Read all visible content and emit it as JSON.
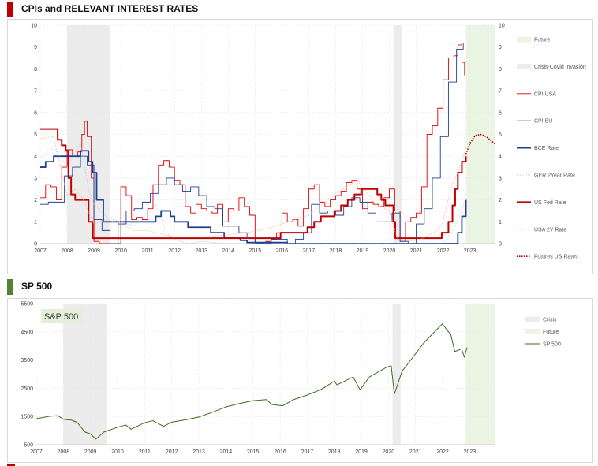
{
  "sections": {
    "rates": {
      "title": "CPIs and RELEVANT INTEREST RATES",
      "marker_color": "#c00000"
    },
    "sp500": {
      "title": "SP 500",
      "marker_color": "#548235"
    }
  },
  "colors": {
    "cpi_usa": "#e00000",
    "cpi_eu": "#1f3f8f",
    "bce_rate": "#1f3f8f",
    "ger_2y": "#b8c8e8",
    "fed_rate": "#c00000",
    "usa_2y": "#f4b18c",
    "futures": "#c00000",
    "crisis_band": "#ececec",
    "future_band": "#eaf5e4",
    "sp500_line": "#3a6e1c",
    "sp500_label_bg": "#e3efd9"
  },
  "chart_data": [
    {
      "type": "line",
      "title": "CPIs and RELEVANT INTEREST RATES",
      "xlabel": "",
      "ylabel": "",
      "x_ticks": [
        "2007",
        "2008",
        "2009",
        "2010",
        "2011",
        "2012",
        "2013",
        "2014",
        "2015",
        "2016",
        "2017",
        "2018",
        "2019",
        "2020",
        "2021",
        "2022",
        "2023"
      ],
      "xlim": [
        2007,
        2023.95
      ],
      "ylim": [
        0,
        10
      ],
      "y_ticks": [
        0,
        1,
        2,
        3,
        4,
        5,
        6,
        7,
        8,
        9,
        10
      ],
      "grid": true,
      "legend_position": "right",
      "shaded_ranges": [
        {
          "name": "Crisis-Covid Invasión",
          "ranges": [
            [
              2008.0,
              2009.6
            ],
            [
              2020.15,
              2020.45
            ]
          ]
        },
        {
          "name": "Future",
          "ranges": [
            [
              2022.85,
              2023.95
            ]
          ]
        }
      ],
      "legend": [
        "Future",
        "Crisis-Covid Invasión",
        "CPI USA",
        "CPI EU",
        "BCE Rate",
        "GER 2Year Rate",
        "US Fed Rate",
        "USA 2Y Rate",
        "Futures US Rates"
      ],
      "series": [
        {
          "name": "CPI USA",
          "style": "step",
          "x": [
            2007.0,
            2007.2,
            2007.4,
            2007.6,
            2007.8,
            2008.0,
            2008.2,
            2008.4,
            2008.55,
            2008.65,
            2008.75,
            2008.9,
            2009.0,
            2009.2,
            2009.4,
            2009.6,
            2009.8,
            2010.0,
            2010.2,
            2010.4,
            2010.6,
            2010.8,
            2011.0,
            2011.2,
            2011.4,
            2011.6,
            2011.8,
            2012.0,
            2012.2,
            2012.4,
            2012.6,
            2012.8,
            2013.0,
            2013.2,
            2013.4,
            2013.6,
            2013.8,
            2014.0,
            2014.2,
            2014.4,
            2014.6,
            2014.8,
            2015.0,
            2015.2,
            2015.4,
            2015.6,
            2015.8,
            2016.0,
            2016.2,
            2016.4,
            2016.6,
            2016.8,
            2017.0,
            2017.2,
            2017.4,
            2017.6,
            2017.8,
            2018.0,
            2018.2,
            2018.4,
            2018.6,
            2018.8,
            2019.0,
            2019.2,
            2019.4,
            2019.6,
            2019.8,
            2020.0,
            2020.2,
            2020.4,
            2020.6,
            2020.8,
            2021.0,
            2021.2,
            2021.4,
            2021.6,
            2021.8,
            2022.0,
            2022.2,
            2022.4,
            2022.55,
            2022.7,
            2022.8
          ],
          "values": [
            2.1,
            2.7,
            2.6,
            2.0,
            3.5,
            4.3,
            4.0,
            4.2,
            5.0,
            5.6,
            4.9,
            3.0,
            0.1,
            -0.4,
            -1.3,
            -1.5,
            0.0,
            2.6,
            2.2,
            1.1,
            1.2,
            1.1,
            1.6,
            2.7,
            3.6,
            3.8,
            3.5,
            2.9,
            2.7,
            1.7,
            1.4,
            1.8,
            1.6,
            1.5,
            1.4,
            1.8,
            1.0,
            1.6,
            1.5,
            2.1,
            1.7,
            1.3,
            0.0,
            -0.1,
            0.1,
            0.2,
            0.5,
            1.4,
            1.0,
            1.1,
            0.8,
            1.6,
            2.5,
            2.7,
            1.9,
            1.7,
            2.0,
            2.2,
            2.4,
            2.8,
            2.9,
            2.5,
            1.6,
            1.9,
            1.8,
            1.7,
            2.1,
            2.5,
            1.5,
            0.1,
            1.0,
            1.2,
            1.4,
            2.6,
            5.0,
            5.4,
            6.2,
            7.5,
            8.5,
            8.6,
            9.1,
            8.3,
            7.7
          ]
        },
        {
          "name": "CPI EU",
          "style": "step",
          "x": [
            2007.0,
            2007.3,
            2007.6,
            2007.9,
            2008.2,
            2008.5,
            2008.75,
            2009.0,
            2009.3,
            2009.6,
            2009.9,
            2010.2,
            2010.5,
            2010.8,
            2011.1,
            2011.4,
            2011.7,
            2012.0,
            2012.3,
            2012.6,
            2012.9,
            2013.2,
            2013.5,
            2013.8,
            2014.1,
            2014.4,
            2014.7,
            2015.0,
            2015.3,
            2015.6,
            2015.9,
            2016.2,
            2016.5,
            2016.8,
            2017.1,
            2017.4,
            2017.7,
            2018.0,
            2018.3,
            2018.6,
            2018.9,
            2019.2,
            2019.5,
            2019.8,
            2020.1,
            2020.4,
            2020.7,
            2021.0,
            2021.3,
            2021.6,
            2021.9,
            2022.2,
            2022.5,
            2022.75
          ],
          "values": [
            1.8,
            1.9,
            1.9,
            3.1,
            3.5,
            4.0,
            3.6,
            1.1,
            0.6,
            -0.6,
            0.9,
            1.5,
            1.6,
            1.9,
            2.3,
            2.7,
            3.0,
            2.7,
            2.4,
            2.6,
            2.2,
            1.7,
            1.6,
            0.8,
            0.8,
            0.5,
            0.3,
            -0.6,
            0.0,
            0.2,
            0.2,
            0.0,
            0.2,
            0.5,
            1.8,
            1.4,
            1.5,
            1.3,
            1.7,
            2.1,
            1.9,
            1.4,
            1.0,
            1.0,
            1.4,
            0.1,
            -0.3,
            0.9,
            1.6,
            3.0,
            4.9,
            7.4,
            8.9,
            9.2
          ]
        },
        {
          "name": "BCE Rate",
          "style": "step",
          "x": [
            2007.0,
            2007.2,
            2007.5,
            2008.5,
            2008.8,
            2008.95,
            2009.1,
            2009.35,
            2011.3,
            2011.5,
            2011.85,
            2012.0,
            2012.5,
            2013.35,
            2013.85,
            2014.45,
            2014.7,
            2016.2,
            2022.55,
            2022.7,
            2022.85
          ],
          "values": [
            3.5,
            3.75,
            4.0,
            4.25,
            3.75,
            3.25,
            2.0,
            1.0,
            1.25,
            1.5,
            1.25,
            1.0,
            0.75,
            0.5,
            0.25,
            0.15,
            0.05,
            0.0,
            0.5,
            1.25,
            2.0
          ]
        },
        {
          "name": "GER 2Year Rate",
          "style": "line",
          "x": [
            2007.0,
            2007.5,
            2008.0,
            2008.5,
            2008.8,
            2009.0,
            2009.5,
            2010.0,
            2010.5,
            2011.0,
            2011.3,
            2011.7,
            2012.0,
            2012.5,
            2013.0,
            2014.0,
            2015.0,
            2016.0,
            2017.0,
            2018.0,
            2019.0,
            2020.0,
            2021.0,
            2021.8,
            2022.0,
            2022.3,
            2022.6,
            2022.85
          ],
          "values": [
            3.9,
            4.4,
            3.5,
            4.6,
            2.5,
            1.8,
            1.2,
            1.0,
            0.8,
            1.4,
            1.8,
            0.5,
            0.2,
            0.0,
            0.1,
            0.0,
            0.0,
            0.0,
            0.0,
            0.0,
            0.0,
            0.0,
            0.0,
            0.0,
            0.0,
            0.5,
            1.2,
            2.1
          ]
        },
        {
          "name": "US Fed Rate",
          "style": "step",
          "x": [
            2007.0,
            2007.65,
            2007.8,
            2007.95,
            2008.05,
            2008.15,
            2008.3,
            2008.8,
            2008.95,
            2015.95,
            2016.95,
            2017.2,
            2017.45,
            2017.95,
            2018.2,
            2018.45,
            2018.7,
            2018.95,
            2019.55,
            2019.7,
            2019.85,
            2020.15,
            2020.22,
            2021.95,
            2022.2,
            2022.35,
            2022.45,
            2022.55,
            2022.7,
            2022.85
          ],
          "values": [
            5.25,
            4.75,
            4.5,
            4.25,
            3.0,
            2.25,
            2.0,
            1.0,
            0.25,
            0.5,
            0.75,
            1.0,
            1.25,
            1.5,
            1.75,
            2.0,
            2.25,
            2.5,
            2.25,
            2.0,
            1.75,
            1.0,
            0.25,
            0.5,
            1.0,
            1.75,
            2.5,
            3.25,
            3.75,
            4.0
          ]
        },
        {
          "name": "USA 2Y Rate",
          "style": "line",
          "x": [
            2007.0,
            2007.5,
            2008.0,
            2008.3,
            2008.6,
            2009.0,
            2009.5,
            2010.0,
            2010.5,
            2011.0,
            2012.0,
            2013.0,
            2014.0,
            2014.7,
            2015.5,
            2016.0,
            2017.0,
            2018.0,
            2018.8,
            2019.5,
            2020.0,
            2020.3,
            2021.0,
            2021.8,
            2022.0,
            2022.3,
            2022.6,
            2022.85
          ],
          "values": [
            4.8,
            4.9,
            2.2,
            2.5,
            2.0,
            0.9,
            1.1,
            0.9,
            0.6,
            0.6,
            0.3,
            0.3,
            0.4,
            0.5,
            0.7,
            0.9,
            1.3,
            2.3,
            2.9,
            1.8,
            1.5,
            0.2,
            0.1,
            0.6,
            1.0,
            2.6,
            3.4,
            4.4
          ]
        },
        {
          "name": "Futures US Rates",
          "style": "dotted",
          "x": [
            2022.85,
            2023.0,
            2023.2,
            2023.4,
            2023.6,
            2023.8,
            2023.95
          ],
          "values": [
            4.1,
            4.6,
            4.95,
            5.0,
            4.9,
            4.7,
            4.55
          ]
        }
      ]
    },
    {
      "type": "line",
      "title": "SP 500",
      "inset_label": "S&P 500",
      "xlabel": "",
      "ylabel": "",
      "x_ticks": [
        "2007",
        "2008",
        "2009",
        "2010",
        "2011",
        "2012",
        "2013",
        "2014",
        "2015",
        "2016",
        "2017",
        "2018",
        "2019",
        "2020",
        "2021",
        "2022",
        "2023"
      ],
      "xlim": [
        2007,
        2023.95
      ],
      "ylim": [
        500,
        5500
      ],
      "y_ticks": [
        500,
        1500,
        2500,
        3500,
        4500,
        5500
      ],
      "grid": true,
      "legend_position": "right",
      "shaded_ranges": [
        {
          "name": "Crisis",
          "ranges": [
            [
              2008.0,
              2009.6
            ],
            [
              2020.15,
              2020.45
            ]
          ]
        },
        {
          "name": "Future",
          "ranges": [
            [
              2022.85,
              2023.95
            ]
          ]
        }
      ],
      "legend": [
        "Crisis",
        "Future",
        "SP 500"
      ],
      "series": [
        {
          "name": "SP 500",
          "x": [
            2007.0,
            2007.5,
            2007.8,
            2008.0,
            2008.3,
            2008.5,
            2008.8,
            2009.0,
            2009.2,
            2009.5,
            2010.0,
            2010.3,
            2010.5,
            2011.0,
            2011.3,
            2011.7,
            2012.0,
            2012.5,
            2013.0,
            2013.5,
            2014.0,
            2014.5,
            2015.0,
            2015.5,
            2015.7,
            2016.1,
            2016.5,
            2017.0,
            2017.5,
            2018.0,
            2018.1,
            2018.7,
            2018.95,
            2019.3,
            2019.9,
            2020.1,
            2020.22,
            2020.5,
            2020.9,
            2021.3,
            2021.6,
            2021.99,
            2022.3,
            2022.45,
            2022.7,
            2022.8,
            2022.9
          ],
          "values": [
            1420,
            1510,
            1530,
            1400,
            1370,
            1300,
            950,
            880,
            700,
            950,
            1120,
            1200,
            1050,
            1280,
            1350,
            1150,
            1300,
            1380,
            1480,
            1650,
            1840,
            1960,
            2060,
            2100,
            1920,
            1880,
            2100,
            2260,
            2450,
            2750,
            2620,
            2900,
            2450,
            2900,
            3230,
            3300,
            2300,
            3100,
            3600,
            4100,
            4400,
            4780,
            4400,
            3800,
            3900,
            3600,
            3950
          ]
        }
      ]
    }
  ]
}
